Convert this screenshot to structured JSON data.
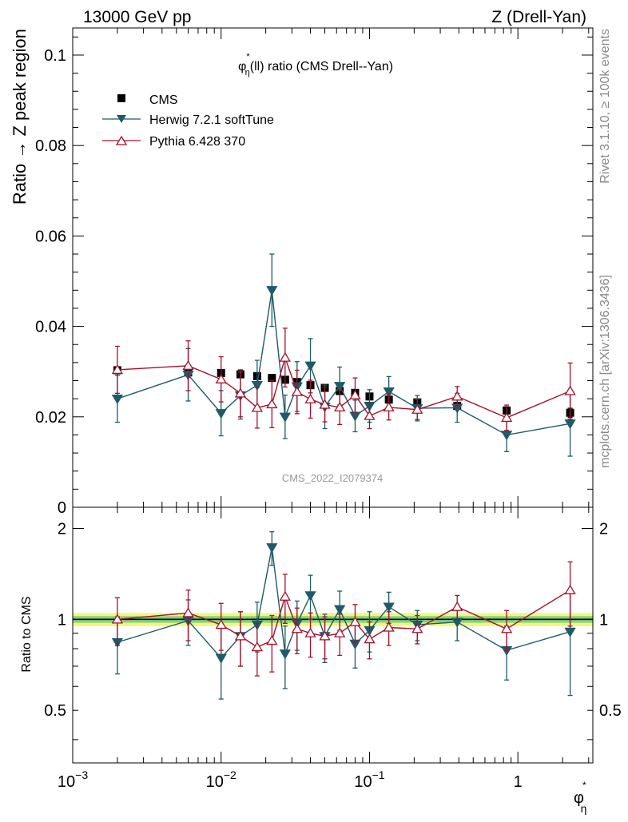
{
  "header": {
    "left": "13000 GeV pp",
    "right": "Z (Drell-Yan)"
  },
  "side_labels": {
    "rivet": "Rivet 3.1.10, ≥ 100k events",
    "mcplots": "mcplots.cern.ch [arXiv:1306.3436]"
  },
  "watermark": "CMS_2022_I2079374",
  "colors": {
    "cms": "#000000",
    "herwig": "#1e5a6a",
    "pythia": "#a5102a",
    "band_green": "#7fd17f",
    "band_yellow": "#f5f57a"
  },
  "chart_data": [
    {
      "type": "scatter",
      "title": "φ*η(ll) ratio (CMS Drell--Yan)",
      "title_parts": {
        "phi": "φ",
        "star": "*",
        "eta": "η",
        "rest": "(ll) ratio (CMS Drell--Yan)"
      },
      "ylabel": "Ratio → Z peak region",
      "xscale": "log",
      "xlim": [
        0.001,
        3.2
      ],
      "ylim": [
        0,
        0.106
      ],
      "yticks": [
        0,
        0.02,
        0.04,
        0.06,
        0.08,
        0.1
      ],
      "ytick_labels": [
        "0",
        "0.02",
        "0.04",
        "0.06",
        "0.08",
        "0.1"
      ],
      "legend": [
        "CMS",
        "Herwig 7.2.1 softTune",
        "Pythia 6.428 370"
      ],
      "legend_position": "top-left",
      "series": [
        {
          "name": "CMS",
          "x": [
            0.002,
            0.006,
            0.01,
            0.0135,
            0.0175,
            0.022,
            0.027,
            0.0325,
            0.04,
            0.05,
            0.063,
            0.08,
            0.1,
            0.135,
            0.21,
            0.39,
            0.84,
            2.25
          ],
          "y": [
            0.0303,
            0.0298,
            0.0297,
            0.0294,
            0.029,
            0.0286,
            0.0282,
            0.0277,
            0.027,
            0.0264,
            0.0257,
            0.0253,
            0.0245,
            0.0238,
            0.0232,
            0.0224,
            0.0214,
            0.0209
          ],
          "err": [
            0.0007,
            0.0007,
            0.0007,
            0.0007,
            0.0007,
            0.0007,
            0.0007,
            0.0007,
            0.0007,
            0.0007,
            0.0007,
            0.0007,
            0.0007,
            0.0007,
            0.0007,
            0.0008,
            0.0008,
            0.001
          ]
        },
        {
          "name": "Herwig 7.2.1 softTune",
          "x": [
            0.002,
            0.006,
            0.01,
            0.0135,
            0.0175,
            0.022,
            0.027,
            0.0325,
            0.04,
            0.05,
            0.063,
            0.08,
            0.1,
            0.135,
            0.21,
            0.39,
            0.84,
            2.25
          ],
          "y": [
            0.024,
            0.0293,
            0.0208,
            0.0247,
            0.027,
            0.048,
            0.02,
            0.0267,
            0.0313,
            0.0222,
            0.0268,
            0.0202,
            0.0224,
            0.0256,
            0.0219,
            0.022,
            0.016,
            0.0185
          ],
          "err": [
            0.0052,
            0.0058,
            0.005,
            0.0052,
            0.0055,
            0.008,
            0.0048,
            0.0055,
            0.006,
            0.0048,
            0.0042,
            0.0035,
            0.0036,
            0.0033,
            0.0028,
            0.0032,
            0.0037,
            0.0072
          ]
        },
        {
          "name": "Pythia 6.428 370",
          "x": [
            0.002,
            0.006,
            0.01,
            0.0135,
            0.0175,
            0.022,
            0.027,
            0.0325,
            0.04,
            0.05,
            0.063,
            0.08,
            0.1,
            0.135,
            0.21,
            0.39,
            0.84,
            2.25
          ],
          "y": [
            0.0304,
            0.0313,
            0.0283,
            0.0252,
            0.022,
            0.0228,
            0.0331,
            0.0255,
            0.0239,
            0.0227,
            0.0221,
            0.0248,
            0.0202,
            0.0221,
            0.0216,
            0.0245,
            0.0198,
            0.0257
          ],
          "err": [
            0.0052,
            0.0055,
            0.005,
            0.0052,
            0.0045,
            0.0052,
            0.0065,
            0.0048,
            0.0042,
            0.0038,
            0.0038,
            0.0038,
            0.0028,
            0.0028,
            0.0022,
            0.0022,
            0.0028,
            0.0062
          ]
        }
      ]
    },
    {
      "type": "scatter",
      "ylabel": "Ratio to CMS",
      "xlabel_parts": {
        "phi": "φ",
        "star": "*",
        "eta": "η"
      },
      "xscale": "log",
      "xlim": [
        0.001,
        3.2
      ],
      "xticks": [
        0.001,
        0.01,
        0.1,
        1
      ],
      "xtick_labels": [
        {
          "base": "10",
          "exp": "−3"
        },
        {
          "base": "10",
          "exp": "−2"
        },
        {
          "base": "10",
          "exp": "−1"
        },
        {
          "base": "1",
          "exp": ""
        }
      ],
      "ylim": [
        0.335,
        2.35
      ],
      "yticks": [
        0.5,
        1,
        2
      ],
      "ytick_labels": [
        "0.5",
        "1",
        "2"
      ],
      "reference_band": {
        "green": 0.025,
        "yellow": 0.05
      },
      "series": [
        {
          "name": "Herwig 7.2.1 softTune",
          "x": [
            0.002,
            0.006,
            0.01,
            0.0135,
            0.0175,
            0.022,
            0.027,
            0.0325,
            0.04,
            0.05,
            0.063,
            0.08,
            0.1,
            0.135,
            0.21,
            0.39,
            0.84,
            2.25
          ],
          "y": [
            0.84,
            0.99,
            0.745,
            0.88,
            0.96,
            1.73,
            0.77,
            0.97,
            1.2,
            0.88,
            1.08,
            0.83,
            0.92,
            1.1,
            0.96,
            0.98,
            0.79,
            0.91
          ],
          "err": [
            0.18,
            0.17,
            0.2,
            0.18,
            0.18,
            0.22,
            0.18,
            0.18,
            0.2,
            0.16,
            0.16,
            0.14,
            0.14,
            0.13,
            0.11,
            0.13,
            0.16,
            0.35
          ]
        },
        {
          "name": "Pythia 6.428 370",
          "x": [
            0.002,
            0.006,
            0.01,
            0.0135,
            0.0175,
            0.022,
            0.027,
            0.0325,
            0.04,
            0.05,
            0.063,
            0.08,
            0.1,
            0.135,
            0.21,
            0.39,
            0.84,
            2.25
          ],
          "y": [
            1.0,
            1.05,
            0.96,
            0.88,
            0.81,
            0.85,
            1.19,
            0.93,
            0.9,
            0.88,
            0.9,
            0.98,
            0.86,
            0.94,
            0.93,
            1.1,
            0.93,
            1.25
          ],
          "err": [
            0.18,
            0.2,
            0.17,
            0.18,
            0.16,
            0.18,
            0.22,
            0.16,
            0.15,
            0.14,
            0.14,
            0.14,
            0.12,
            0.12,
            0.1,
            0.1,
            0.14,
            0.3
          ]
        }
      ]
    }
  ]
}
